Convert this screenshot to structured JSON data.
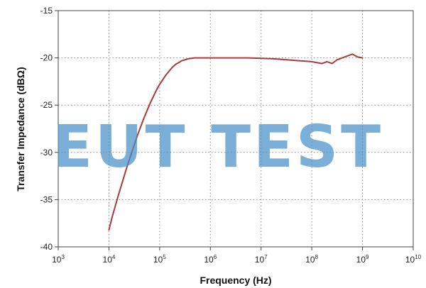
{
  "chart_data": {
    "type": "line",
    "xlabel": "Frequency (Hz)",
    "ylabel": "Transfer Impedance (dBΩ)",
    "x_scale": "log",
    "xlim": [
      1000,
      10000000000
    ],
    "ylim": [
      -40,
      -15
    ],
    "x_ticks": [
      {
        "value": 1000,
        "base": "10",
        "exp": "3"
      },
      {
        "value": 10000,
        "base": "10",
        "exp": "4"
      },
      {
        "value": 100000,
        "base": "10",
        "exp": "5"
      },
      {
        "value": 1000000,
        "base": "10",
        "exp": "6"
      },
      {
        "value": 10000000,
        "base": "10",
        "exp": "7"
      },
      {
        "value": 100000000,
        "base": "10",
        "exp": "8"
      },
      {
        "value": 1000000000,
        "base": "10",
        "exp": "9"
      },
      {
        "value": 10000000000,
        "base": "10",
        "exp": "10"
      }
    ],
    "y_ticks": [
      -15,
      -20,
      -25,
      -30,
      -35,
      -40
    ],
    "grid": true,
    "series": [
      {
        "color": "#a83c3c",
        "x": [
          10000,
          11500,
          13300,
          15400,
          17800,
          20500,
          23700,
          27400,
          31600,
          36500,
          42200,
          48700,
          56200,
          64900,
          75000,
          86600,
          100000,
          115500,
          133400,
          154000,
          177800,
          205400,
          237100,
          273800,
          316200,
          365200,
          421700,
          487000,
          562300,
          649400,
          749900,
          866000,
          1000000,
          1778000,
          3162000,
          5623000,
          10000000,
          17780000,
          31620000,
          56230000,
          100000000,
          125900000,
          158500000,
          199500000,
          251200000,
          316200000,
          398100000,
          501200000,
          631000000,
          794300000,
          1000000000
        ],
        "y": [
          -38.2,
          -36.9,
          -35.7,
          -34.5,
          -33.4,
          -32.3,
          -31.2,
          -30.2,
          -29.2,
          -28.2,
          -27.3,
          -26.4,
          -25.6,
          -24.8,
          -24.1,
          -23.4,
          -22.8,
          -22.3,
          -21.8,
          -21.4,
          -21.0,
          -20.7,
          -20.5,
          -20.3,
          -20.2,
          -20.1,
          -20.05,
          -20.0,
          -20.0,
          -20.0,
          -20.0,
          -20.0,
          -20.0,
          -20.0,
          -20.0,
          -20.0,
          -20.05,
          -20.1,
          -20.2,
          -20.3,
          -20.4,
          -20.5,
          -20.6,
          -20.4,
          -20.6,
          -20.2,
          -20.0,
          -19.8,
          -19.6,
          -19.9,
          -20.0
        ]
      }
    ]
  },
  "watermark": "EUT TEST",
  "colors": {
    "plot_border": "#444444",
    "grid": "#8a8a8a",
    "watermark": "#4a90c8"
  }
}
